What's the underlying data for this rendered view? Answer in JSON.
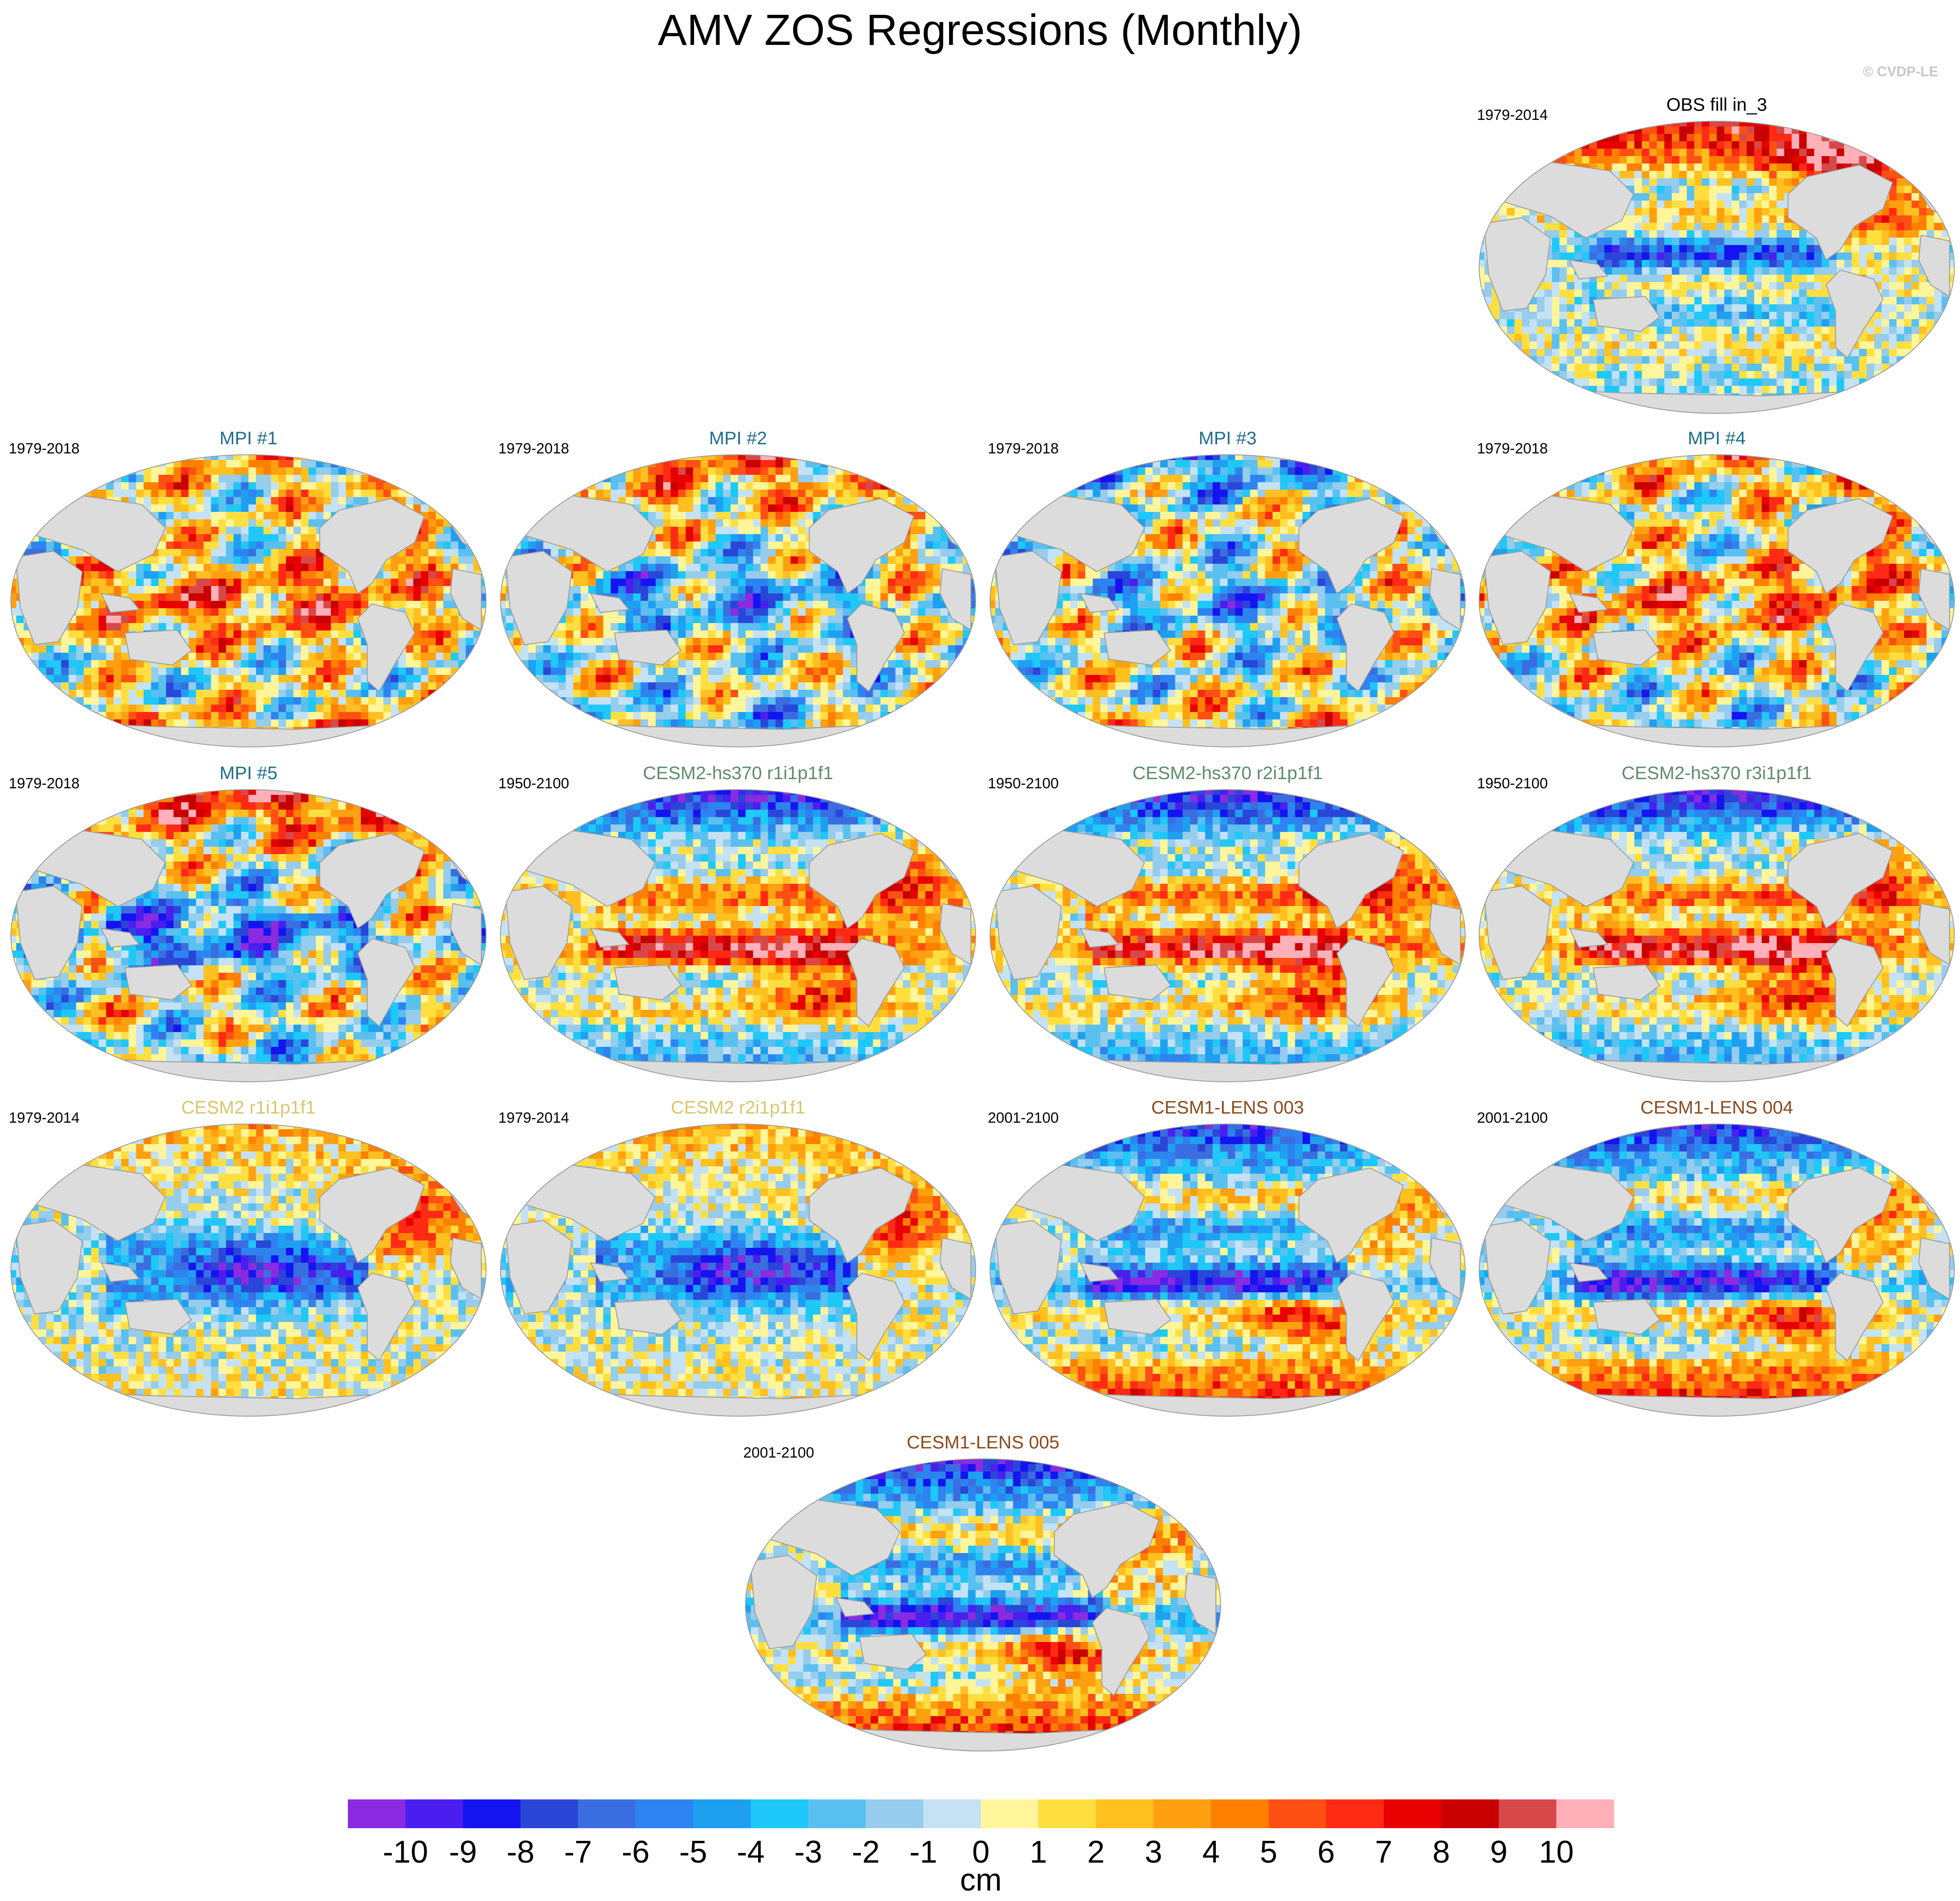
{
  "page": {
    "title": "AMV ZOS Regressions (Monthly)",
    "copyright": "© CVDP-LE"
  },
  "chart_data": {
    "type": "heatmap",
    "projection": "Robinson",
    "variable": "ZOS",
    "panels": [
      {
        "title": "OBS fill in_3",
        "period": "1979-2014",
        "title_color": "#000000",
        "pattern": "obs",
        "region_values": {
          "arctic": 9,
          "north_atlantic": 5,
          "tropical_pacific": -4,
          "southern_ocean": -2
        }
      },
      {
        "title": "MPI #1",
        "period": "1979-2018",
        "title_color": "#1f6e8c",
        "pattern": "mpi1",
        "region_values": {
          "arctic": 2,
          "north_atlantic": 3,
          "tropical_pacific": 5,
          "southern_ocean": 4
        }
      },
      {
        "title": "MPI #2",
        "period": "1979-2018",
        "title_color": "#1f6e8c",
        "pattern": "mpi2",
        "region_values": {
          "arctic": 5,
          "north_atlantic": 2,
          "tropical_pacific": -4,
          "southern_ocean": -4
        }
      },
      {
        "title": "MPI #3",
        "period": "1979-2018",
        "title_color": "#1f6e8c",
        "pattern": "mpi3",
        "region_values": {
          "arctic": -5,
          "north_atlantic": 2,
          "tropical_pacific": -3,
          "southern_ocean": 2
        }
      },
      {
        "title": "MPI #4",
        "period": "1979-2018",
        "title_color": "#1f6e8c",
        "pattern": "mpi4",
        "region_values": {
          "arctic": 3,
          "north_atlantic": 4,
          "tropical_pacific": 4,
          "southern_ocean": -3
        }
      },
      {
        "title": "MPI #5",
        "period": "1979-2018",
        "title_color": "#1f6e8c",
        "pattern": "mpi5",
        "region_values": {
          "arctic": 8,
          "north_atlantic": 2,
          "tropical_pacific": -6,
          "southern_ocean": -3
        }
      },
      {
        "title": "CESM2-hs370 r1i1p1f1",
        "period": "1950-2100",
        "title_color": "#5e8c6a",
        "pattern": "hs370",
        "region_values": {
          "arctic": -10,
          "north_atlantic": 6,
          "tropical_pacific": 6,
          "southern_ocean": -6
        }
      },
      {
        "title": "CESM2-hs370 r2i1p1f1",
        "period": "1950-2100",
        "title_color": "#5e8c6a",
        "pattern": "hs370",
        "region_values": {
          "arctic": -10,
          "north_atlantic": 6,
          "tropical_pacific": 6,
          "southern_ocean": -6
        }
      },
      {
        "title": "CESM2-hs370 r3i1p1f1",
        "period": "1950-2100",
        "title_color": "#5e8c6a",
        "pattern": "hs370",
        "region_values": {
          "arctic": -10,
          "north_atlantic": 6,
          "tropical_pacific": 6,
          "southern_ocean": -6
        }
      },
      {
        "title": "CESM2 r1i1p1f1",
        "period": "1979-2014",
        "title_color": "#d8c66a",
        "pattern": "cesm2",
        "region_values": {
          "arctic": 3,
          "north_atlantic": 4,
          "tropical_pacific": -9,
          "southern_ocean": 1
        }
      },
      {
        "title": "CESM2 r2i1p1f1",
        "period": "1979-2014",
        "title_color": "#d8c66a",
        "pattern": "cesm2",
        "region_values": {
          "arctic": 3,
          "north_atlantic": 4,
          "tropical_pacific": -9,
          "southern_ocean": 1
        }
      },
      {
        "title": "CESM1-LENS 003",
        "period": "2001-2100",
        "title_color": "#8a4a1c",
        "pattern": "lens",
        "region_values": {
          "arctic": -9,
          "north_atlantic": 4,
          "tropical_pacific": -7,
          "southern_ocean": 10
        }
      },
      {
        "title": "CESM1-LENS 004",
        "period": "2001-2100",
        "title_color": "#8a4a1c",
        "pattern": "lens",
        "region_values": {
          "arctic": -9,
          "north_atlantic": 5,
          "tropical_pacific": -7,
          "southern_ocean": 10
        }
      },
      {
        "title": "CESM1-LENS 005",
        "period": "2001-2100",
        "title_color": "#8a4a1c",
        "pattern": "lens",
        "region_values": {
          "arctic": -10,
          "north_atlantic": 4,
          "tropical_pacific": -7,
          "southern_ocean": 10
        }
      }
    ],
    "colorbar": {
      "unit": "cm",
      "levels": [
        "-10",
        "-9",
        "-8",
        "-7",
        "-6",
        "-5",
        "-4",
        "-3",
        "-2",
        "-1",
        "0",
        "1",
        "2",
        "3",
        "4",
        "5",
        "6",
        "7",
        "8",
        "9",
        "10"
      ],
      "colors": [
        "#8a2be2",
        "#4b1ef0",
        "#1414f0",
        "#2a46d8",
        "#3a6ee0",
        "#2d84f0",
        "#1ea0f0",
        "#1ec8f8",
        "#5ac0f0",
        "#96ccec",
        "#c4e2f4",
        "#fff59a",
        "#ffdf40",
        "#ffc020",
        "#ffa010",
        "#ff8000",
        "#ff5014",
        "#ff2a14",
        "#e80000",
        "#c80000",
        "#d84848",
        "#ffb0b8"
      ]
    }
  }
}
